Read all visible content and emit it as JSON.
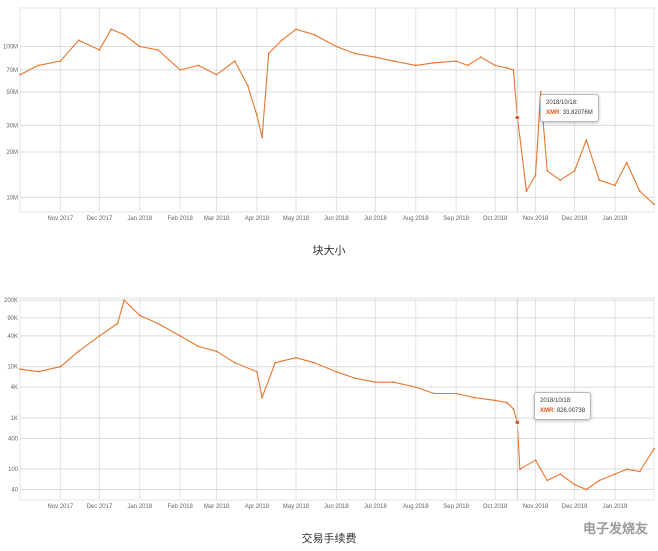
{
  "chart_data": [
    {
      "type": "line",
      "title": "",
      "caption": "块大小",
      "xlabel": "",
      "ylabel": "",
      "y_scale": "log",
      "grid": true,
      "ylim": [
        8000000,
        180000000
      ],
      "y_ticks": [
        {
          "label": "10M",
          "value": 10000000
        },
        {
          "label": "20M",
          "value": 20000000
        },
        {
          "label": "30M",
          "value": 30000000
        },
        {
          "label": "50M",
          "value": 50000000
        },
        {
          "label": "70M",
          "value": 70000000
        },
        {
          "label": "100M",
          "value": 100000000
        }
      ],
      "x_start": "2017-10-01",
      "x_end": "2019-01-31",
      "x_ticks": [
        {
          "label": "Nov 2017",
          "date": "2017-11-01"
        },
        {
          "label": "Dec 2017",
          "date": "2017-12-01"
        },
        {
          "label": "Jan 2018",
          "date": "2018-01-01"
        },
        {
          "label": "Feb 2018",
          "date": "2018-02-01"
        },
        {
          "label": "Mar 2018",
          "date": "2018-03-01"
        },
        {
          "label": "Apr 2018",
          "date": "2018-04-01"
        },
        {
          "label": "May 2018",
          "date": "2018-05-01"
        },
        {
          "label": "Jun 2018",
          "date": "2018-06-01"
        },
        {
          "label": "Jul 2018",
          "date": "2018-07-01"
        },
        {
          "label": "Aug 2018",
          "date": "2018-08-01"
        },
        {
          "label": "Sep 2018",
          "date": "2018-09-01"
        },
        {
          "label": "Oct 2018",
          "date": "2018-10-01"
        },
        {
          "label": "Nov 2018",
          "date": "2018-11-01"
        },
        {
          "label": "Dec 2018",
          "date": "2018-12-01"
        },
        {
          "label": "Jan 2019",
          "date": "2019-01-01"
        }
      ],
      "series": [
        {
          "color": "#e8762d",
          "x": [
            "2017-10-01",
            "2017-10-15",
            "2017-11-01",
            "2017-11-15",
            "2017-12-01",
            "2017-12-10",
            "2017-12-20",
            "2018-01-01",
            "2018-01-15",
            "2018-02-01",
            "2018-02-15",
            "2018-03-01",
            "2018-03-15",
            "2018-03-25",
            "2018-04-01",
            "2018-04-05",
            "2018-04-10",
            "2018-04-20",
            "2018-05-01",
            "2018-05-15",
            "2018-06-01",
            "2018-06-15",
            "2018-07-01",
            "2018-07-15",
            "2018-08-01",
            "2018-08-15",
            "2018-09-01",
            "2018-09-10",
            "2018-09-20",
            "2018-10-01",
            "2018-10-10",
            "2018-10-15",
            "2018-10-18",
            "2018-10-20",
            "2018-10-25",
            "2018-11-01",
            "2018-11-05",
            "2018-11-10",
            "2018-11-20",
            "2018-12-01",
            "2018-12-10",
            "2018-12-20",
            "2019-01-01",
            "2019-01-10",
            "2019-01-20",
            "2019-01-31"
          ],
          "y": [
            65000000,
            75000000,
            80000000,
            110000000,
            95000000,
            130000000,
            120000000,
            100000000,
            95000000,
            70000000,
            75000000,
            65000000,
            80000000,
            55000000,
            35000000,
            25000000,
            90000000,
            110000000,
            130000000,
            120000000,
            100000000,
            90000000,
            85000000,
            80000000,
            75000000,
            78000000,
            80000000,
            75000000,
            85000000,
            75000000,
            72000000,
            70000000,
            33820760,
            25000000,
            11000000,
            14000000,
            50000000,
            15000000,
            13000000,
            15000000,
            24000000,
            13000000,
            12000000,
            17000000,
            11000000,
            9000000
          ]
        }
      ],
      "tooltip": {
        "date": "2018/10/18:",
        "label": "XMR",
        "value": "33.82076M",
        "series_value": 33820760
      }
    },
    {
      "type": "line",
      "title": "",
      "caption": "交易手续费",
      "xlabel": "",
      "ylabel": "",
      "y_scale": "log",
      "grid": true,
      "ylim": [
        25,
        220000
      ],
      "y_ticks": [
        {
          "label": "40",
          "value": 40
        },
        {
          "label": "100",
          "value": 100
        },
        {
          "label": "400",
          "value": 400
        },
        {
          "label": "1K",
          "value": 1000
        },
        {
          "label": "4K",
          "value": 4000
        },
        {
          "label": "10K",
          "value": 10000
        },
        {
          "label": "40K",
          "value": 40000
        },
        {
          "label": "90K",
          "value": 90000
        },
        {
          "label": "200K",
          "value": 200000
        }
      ],
      "x_start": "2017-10-01",
      "x_end": "2019-01-31",
      "x_ticks": [
        {
          "label": "Nov 2017",
          "date": "2017-11-01"
        },
        {
          "label": "Dec 2017",
          "date": "2017-12-01"
        },
        {
          "label": "Jan 2018",
          "date": "2018-01-01"
        },
        {
          "label": "Feb 2018",
          "date": "2018-02-01"
        },
        {
          "label": "Mar 2018",
          "date": "2018-03-01"
        },
        {
          "label": "Apr 2018",
          "date": "2018-04-01"
        },
        {
          "label": "May 2018",
          "date": "2018-05-01"
        },
        {
          "label": "Jun 2018",
          "date": "2018-06-01"
        },
        {
          "label": "Jul 2018",
          "date": "2018-07-01"
        },
        {
          "label": "Aug 2018",
          "date": "2018-08-01"
        },
        {
          "label": "Sep 2018",
          "date": "2018-09-01"
        },
        {
          "label": "Oct 2018",
          "date": "2018-10-01"
        },
        {
          "label": "Nov 2018",
          "date": "2018-11-01"
        },
        {
          "label": "Dec 2018",
          "date": "2018-12-01"
        },
        {
          "label": "Jan 2019",
          "date": "2019-01-01"
        }
      ],
      "series": [
        {
          "color": "#e8762d",
          "x": [
            "2017-10-01",
            "2017-10-15",
            "2017-11-01",
            "2017-11-15",
            "2017-12-01",
            "2017-12-15",
            "2017-12-20",
            "2018-01-01",
            "2018-01-15",
            "2018-02-01",
            "2018-02-15",
            "2018-03-01",
            "2018-03-15",
            "2018-04-01",
            "2018-04-05",
            "2018-04-15",
            "2018-05-01",
            "2018-05-15",
            "2018-06-01",
            "2018-06-15",
            "2018-07-01",
            "2018-07-15",
            "2018-08-01",
            "2018-08-15",
            "2018-09-01",
            "2018-09-15",
            "2018-10-01",
            "2018-10-10",
            "2018-10-15",
            "2018-10-18",
            "2018-10-20",
            "2018-11-01",
            "2018-11-10",
            "2018-11-20",
            "2018-12-01",
            "2018-12-10",
            "2018-12-20",
            "2019-01-01",
            "2019-01-10",
            "2019-01-20",
            "2019-01-31"
          ],
          "y": [
            9000,
            8000,
            10000,
            20000,
            40000,
            70000,
            200000,
            100000,
            70000,
            40000,
            25000,
            20000,
            12000,
            8000,
            2500,
            12000,
            15000,
            12000,
            8000,
            6000,
            5000,
            5000,
            4000,
            3000,
            3000,
            2500,
            2200,
            2000,
            1500,
            826,
            100,
            150,
            60,
            80,
            50,
            40,
            60,
            80,
            100,
            90,
            250
          ]
        }
      ],
      "tooltip": {
        "date": "2018/10/18:",
        "label": "XMR",
        "value": "826.00738",
        "series_value": 826.00738
      }
    }
  ],
  "captions": {
    "chart1": "块大小",
    "chart2": "交易手续费"
  },
  "watermark": "电子发烧友"
}
